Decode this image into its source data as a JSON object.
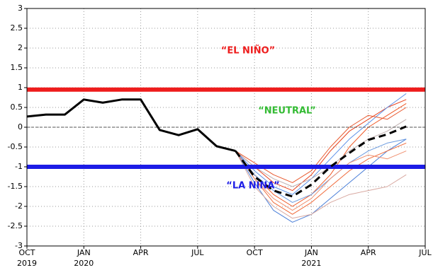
{
  "chart_data": {
    "type": "line",
    "x": [
      0,
      1,
      2,
      3,
      4,
      5,
      6,
      7,
      8,
      9,
      10,
      11,
      12,
      13,
      14,
      15,
      16,
      17,
      18,
      19,
      20
    ],
    "xlim": [
      0,
      21
    ],
    "xticks": [
      {
        "value": 0,
        "label": "OCT"
      },
      {
        "value": 3,
        "label": "JAN"
      },
      {
        "value": 6,
        "label": "APR"
      },
      {
        "value": 9,
        "label": "JUL"
      },
      {
        "value": 12,
        "label": "OCT"
      },
      {
        "value": 15,
        "label": "JAN"
      },
      {
        "value": 18,
        "label": "APR"
      },
      {
        "value": 21,
        "label": "JUL"
      }
    ],
    "xtick_years": [
      {
        "value": 0,
        "label": "2019"
      },
      {
        "value": 3,
        "label": "2020"
      },
      {
        "value": 15,
        "label": "2021"
      }
    ],
    "ylim": [
      -3,
      3
    ],
    "yticks": [
      -3,
      -2.5,
      -2,
      -1.5,
      -1,
      -0.5,
      0,
      0.5,
      1,
      1.5,
      2,
      2.5,
      3
    ],
    "grid": true,
    "hlines": [
      {
        "value": 0,
        "color": "#555555",
        "dashed": true
      },
      {
        "value": 0.95,
        "color": "#ee1c1c",
        "bold": true
      },
      {
        "value": -1,
        "color": "#1c1ce6",
        "bold": true
      }
    ],
    "annotations": [
      {
        "text": "“EL NIÑO”",
        "color": "#ee1c1c"
      },
      {
        "text": "“NEUTRAL”",
        "color": "#33bb33"
      },
      {
        "text": "“LA NINA”",
        "color": "#1c1ce6"
      }
    ],
    "series": [
      {
        "color": "#f05a28",
        "values": [
          null,
          null,
          null,
          null,
          null,
          null,
          null,
          null,
          null,
          null,
          null,
          -0.6,
          -1.2,
          -1.7,
          -2.0,
          -1.7,
          -1.2,
          -0.5,
          0.0,
          0.3,
          0.6
        ]
      },
      {
        "color": "#e8401c",
        "values": [
          null,
          null,
          null,
          null,
          null,
          null,
          null,
          null,
          null,
          null,
          null,
          -0.6,
          -1.0,
          -1.4,
          -1.6,
          -1.2,
          -0.6,
          -0.1,
          0.2,
          0.5,
          0.7
        ]
      },
      {
        "color": "#4a7fd8",
        "values": [
          null,
          null,
          null,
          null,
          null,
          null,
          null,
          null,
          null,
          null,
          null,
          -0.6,
          -1.4,
          -2.1,
          -2.4,
          -2.2,
          -1.8,
          -1.4,
          -1.0,
          -0.6,
          -0.3
        ]
      },
      {
        "color": "#5a8fe8",
        "values": [
          null,
          null,
          null,
          null,
          null,
          null,
          null,
          null,
          null,
          null,
          null,
          -0.6,
          -1.1,
          -1.5,
          -1.7,
          -1.3,
          -0.8,
          -0.3,
          0.1,
          0.5,
          0.85
        ]
      },
      {
        "color": "#c0b0b0",
        "values": [
          null,
          null,
          null,
          null,
          null,
          null,
          null,
          null,
          null,
          null,
          null,
          -0.6,
          -1.0,
          -1.3,
          -1.5,
          -1.3,
          -1.0,
          -0.6,
          -0.3,
          -0.1,
          0.2
        ]
      },
      {
        "color": "#f06a3a",
        "values": [
          null,
          null,
          null,
          null,
          null,
          null,
          null,
          null,
          null,
          null,
          null,
          -0.6,
          -1.3,
          -1.9,
          -2.2,
          -1.9,
          -1.5,
          -1.1,
          -0.8,
          -0.6,
          -0.4
        ]
      },
      {
        "color": "#d8a8a0",
        "values": [
          null,
          null,
          null,
          null,
          null,
          null,
          null,
          null,
          null,
          null,
          null,
          -0.6,
          -1.5,
          -2.0,
          -2.3,
          -2.2,
          -1.9,
          -1.7,
          -1.6,
          -1.5,
          -1.2
        ]
      },
      {
        "color": "#6a9ae0",
        "values": [
          null,
          null,
          null,
          null,
          null,
          null,
          null,
          null,
          null,
          null,
          null,
          -0.6,
          -1.2,
          -1.6,
          -1.9,
          -1.7,
          -1.3,
          -0.9,
          -0.6,
          -0.4,
          -0.3
        ]
      },
      {
        "color": "#e85a30",
        "values": [
          null,
          null,
          null,
          null,
          null,
          null,
          null,
          null,
          null,
          null,
          null,
          -0.6,
          -0.9,
          -1.2,
          -1.4,
          -1.1,
          -0.5,
          0.0,
          0.3,
          0.2,
          0.5
        ]
      },
      {
        "color": "#f09070",
        "values": [
          null,
          null,
          null,
          null,
          null,
          null,
          null,
          null,
          null,
          null,
          null,
          -0.6,
          -1.3,
          -1.8,
          -2.1,
          -1.8,
          -1.3,
          -0.9,
          -0.7,
          -0.8,
          -0.6
        ]
      },
      {
        "color": "#000000",
        "bold": true,
        "values": [
          0.27,
          0.32,
          0.32,
          0.7,
          0.62,
          0.7,
          0.7,
          -0.07,
          -0.2,
          -0.05,
          -0.48,
          -0.6,
          null,
          null,
          null,
          null,
          null,
          null,
          null,
          null,
          null
        ]
      },
      {
        "color": "#000000",
        "bold": true,
        "dashed": true,
        "values": [
          null,
          null,
          null,
          null,
          null,
          null,
          null,
          null,
          null,
          null,
          null,
          -0.6,
          -1.25,
          -1.6,
          -1.75,
          -1.45,
          -1.0,
          -0.65,
          -0.32,
          -0.18,
          0.02
        ]
      }
    ]
  }
}
